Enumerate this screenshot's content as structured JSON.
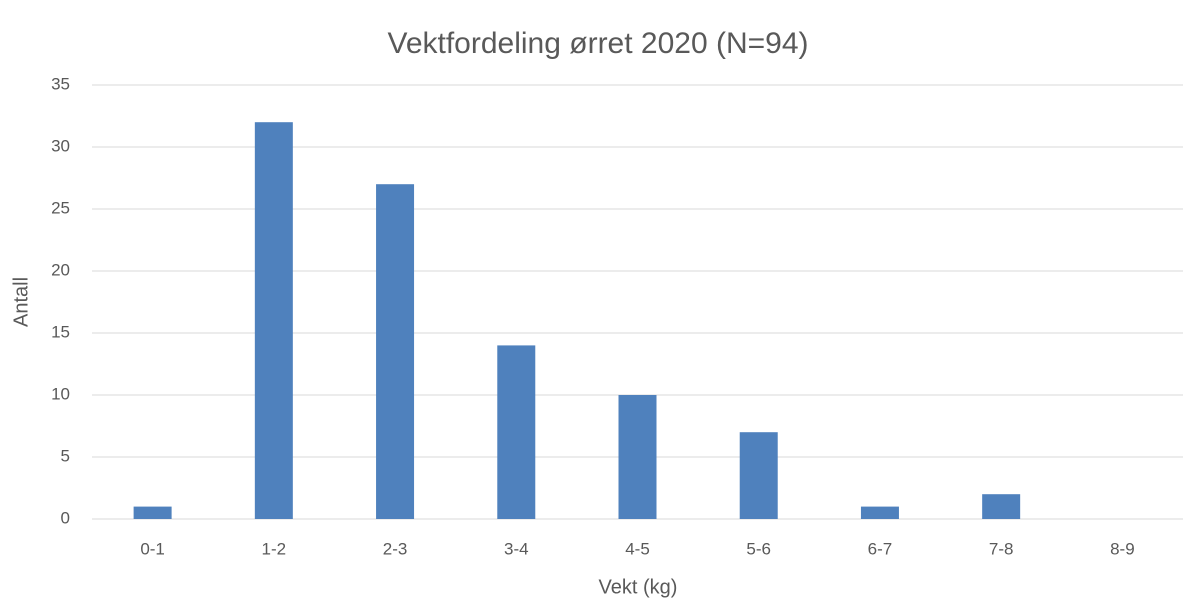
{
  "chart_data": {
    "type": "bar",
    "title": "Vektfordeling ørret 2020 (N=94)",
    "x_label": "Vekt (kg)",
    "y_label": "Antall",
    "categories": [
      "0-1",
      "1-2",
      "2-3",
      "3-4",
      "4-5",
      "5-6",
      "6-7",
      "7-8",
      "8-9"
    ],
    "values": [
      1,
      32,
      27,
      14,
      10,
      7,
      1,
      2,
      0
    ],
    "color": "#4f81bd",
    "ylim": [
      0,
      35
    ],
    "yticks": [
      0,
      5,
      10,
      15,
      20,
      25,
      30,
      35
    ],
    "grid": true
  }
}
